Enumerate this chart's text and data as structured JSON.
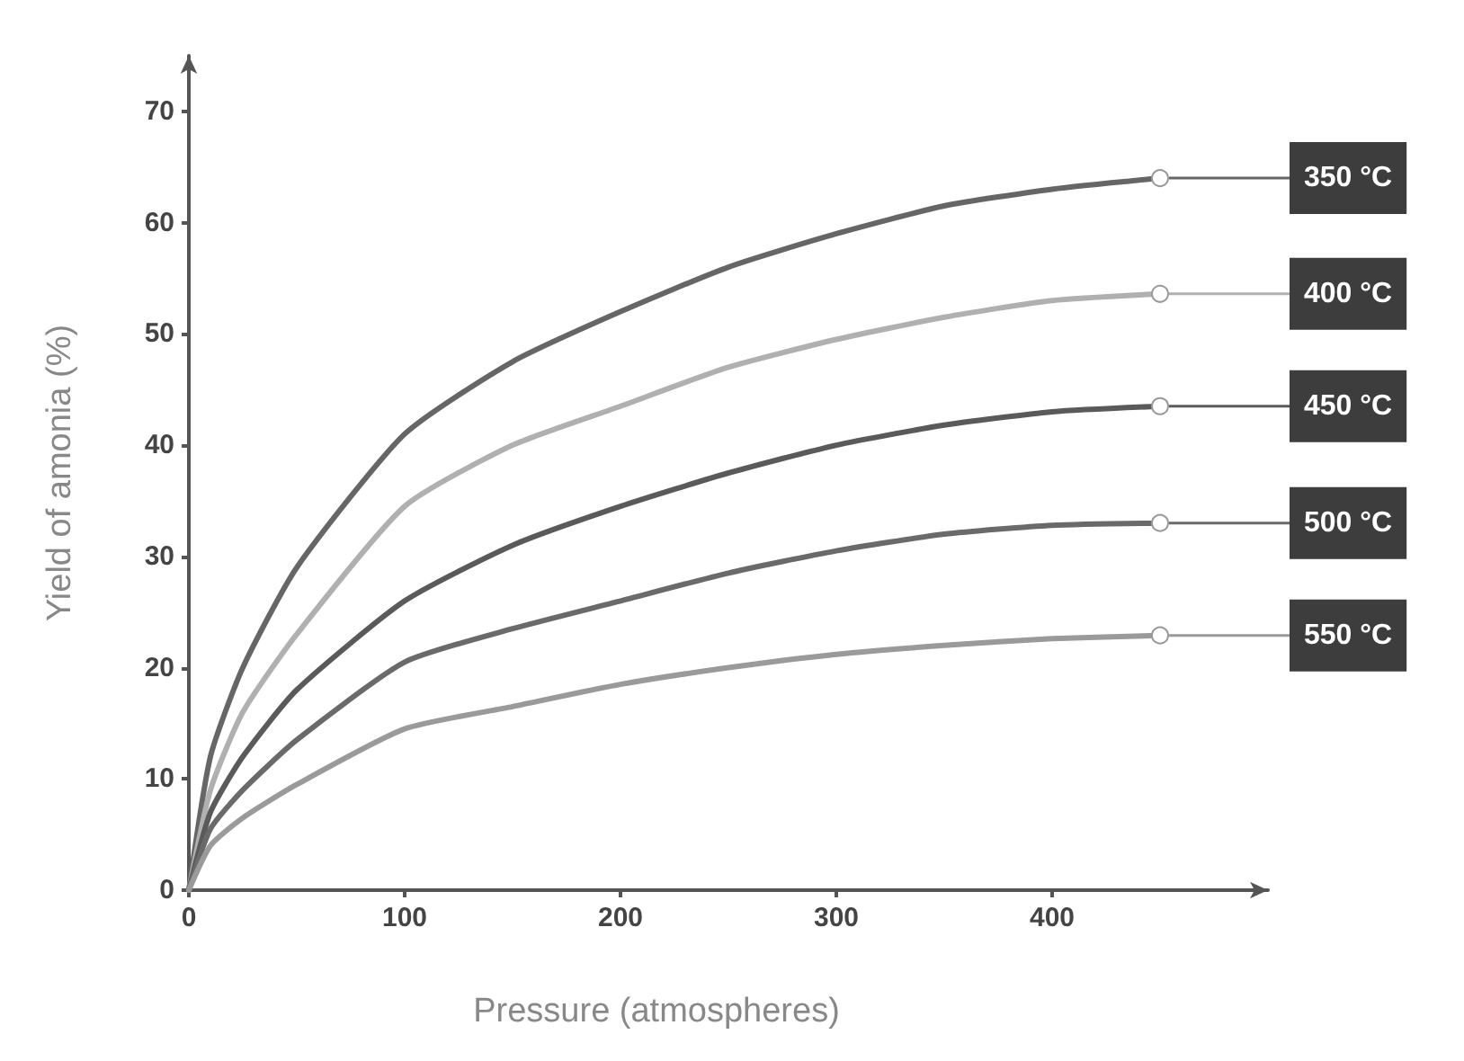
{
  "chart_data": {
    "type": "line",
    "xlabel": "Pressure (atmospheres)",
    "ylabel": "Yield of amonia (%)",
    "x": [
      0,
      10,
      25,
      50,
      100,
      150,
      200,
      250,
      300,
      350,
      400,
      450
    ],
    "xlim": [
      0,
      500
    ],
    "xticks": [
      0,
      100,
      200,
      300,
      400
    ],
    "ylim": [
      0,
      75
    ],
    "yticks": [
      0,
      10,
      20,
      30,
      40,
      50,
      60,
      70
    ],
    "grid": false,
    "legend": "right",
    "series": [
      {
        "name": "350 °C",
        "color": "#666666",
        "values": [
          0,
          12,
          20,
          29,
          41,
          47.5,
          52,
          56,
          59,
          61.5,
          63,
          64
        ]
      },
      {
        "name": "400 °C",
        "color": "#b0b0b0",
        "values": [
          0,
          9,
          16,
          23,
          34.5,
          40,
          43.5,
          47,
          49.5,
          51.5,
          53,
          53.6
        ]
      },
      {
        "name": "450 °C",
        "color": "#5a5a5a",
        "values": [
          0,
          7,
          12,
          18,
          26,
          31,
          34.5,
          37.5,
          40,
          41.8,
          43,
          43.5
        ]
      },
      {
        "name": "500 °C",
        "color": "#6a6a6a",
        "values": [
          0,
          5.5,
          9,
          13.5,
          20.5,
          23.5,
          26,
          28.5,
          30.5,
          32,
          32.8,
          33
        ]
      },
      {
        "name": "550 °C",
        "color": "#9a9a9a",
        "values": [
          0,
          4,
          6.5,
          9.5,
          14.5,
          16.5,
          18.5,
          20,
          21.2,
          22,
          22.6,
          22.9
        ]
      }
    ]
  }
}
